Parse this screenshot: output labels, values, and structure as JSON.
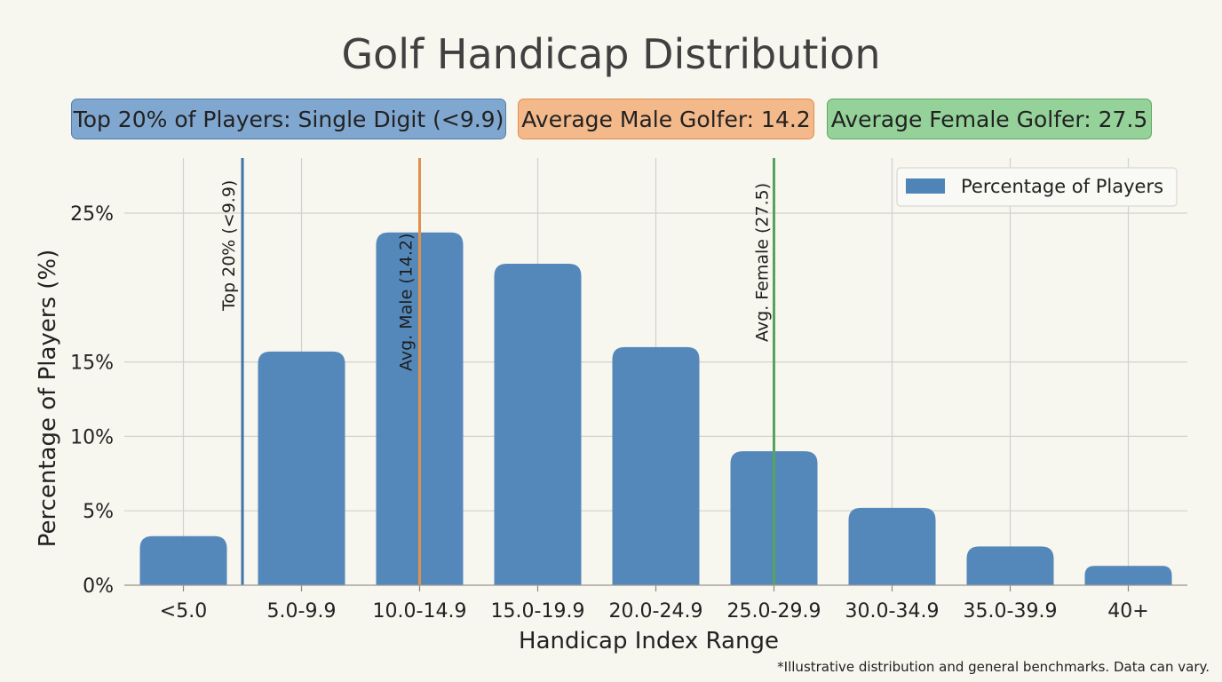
{
  "title": "Golf Handicap Distribution",
  "badges": {
    "top": "Top 20% of Players: Single Digit (<9.9)",
    "male": "Average Male Golfer: 14.2",
    "female": "Average Female Golfer: 27.5"
  },
  "footnote": "*Illustrative distribution and general benchmarks. Data can vary.",
  "colors": {
    "bar": "#4f84b8",
    "top_line": "#3f72aa",
    "male_line": "#e0914c",
    "female_line": "#57a35c",
    "grid": "#d2d2cc",
    "background": "#f7f6ef"
  },
  "chart_data": {
    "type": "bar",
    "title": "Golf Handicap Distribution",
    "xlabel": "Handicap Index Range",
    "ylabel": "Percentage of Players (%)",
    "categories": [
      "<5.0",
      "5.0-9.9",
      "10.0-14.9",
      "15.0-19.9",
      "20.0-24.9",
      "25.0-29.9",
      "30.0-34.9",
      "35.0-39.9",
      "40+"
    ],
    "series": [
      {
        "name": "Percentage of Players",
        "values": [
          3.3,
          15.7,
          23.7,
          21.6,
          16.0,
          9.0,
          5.2,
          2.6,
          1.3
        ]
      }
    ],
    "yticks": [
      0,
      5,
      10,
      15,
      25
    ],
    "ytick_labels": [
      "0%",
      "5%",
      "10%",
      "15%",
      "25%"
    ],
    "ylim": [
      0,
      28.7
    ],
    "grid": true,
    "legend_position": "top-right",
    "reference_lines": [
      {
        "label": "Top 20% (<9.9)",
        "position": 0.5,
        "color_key": "top_line"
      },
      {
        "label": "Avg. Male (14.2)",
        "position": 2,
        "color_key": "male_line"
      },
      {
        "label": "Avg. Female (27.5)",
        "position": 5,
        "color_key": "female_line"
      }
    ]
  }
}
